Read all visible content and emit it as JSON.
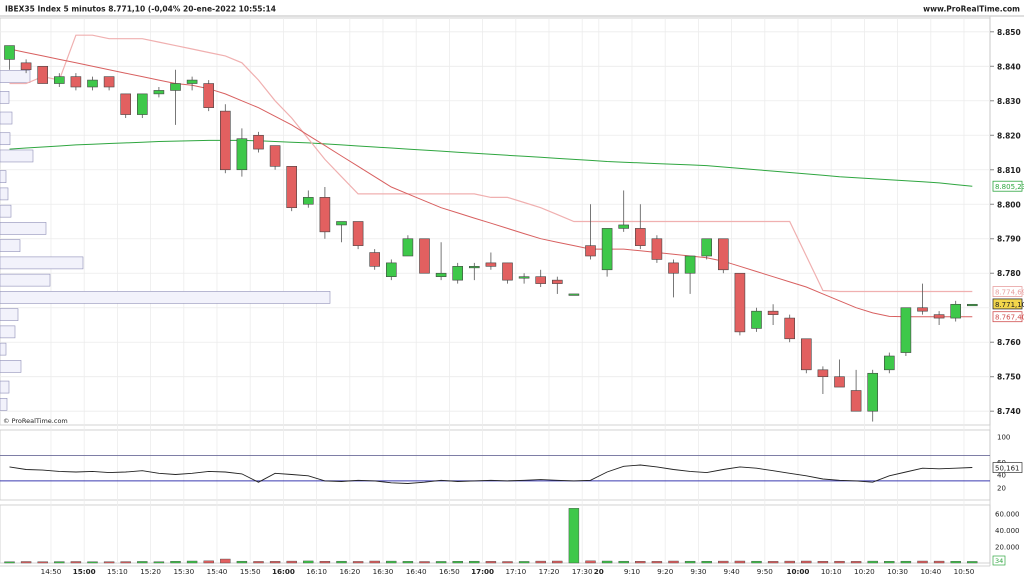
{
  "header": {
    "title": "IBEX35 Index 5 minutos 8.771,10 (-0,04% 20-ene-2022 10:55:14",
    "brand": "www.ProRealTime.com"
  },
  "watermark": "© ProRealTime.com",
  "chart_data": {
    "type": "candlestick",
    "time_labels": [
      {
        "label": "14:50",
        "bold": false,
        "at": 2.5
      },
      {
        "label": "15:00",
        "bold": true,
        "at": 4.5
      },
      {
        "label": "15:10",
        "bold": false,
        "at": 6.5
      },
      {
        "label": "15:20",
        "bold": false,
        "at": 8.5
      },
      {
        "label": "15:30",
        "bold": false,
        "at": 10.5
      },
      {
        "label": "15:40",
        "bold": false,
        "at": 12.5
      },
      {
        "label": "15:50",
        "bold": false,
        "at": 14.5
      },
      {
        "label": "16:00",
        "bold": true,
        "at": 16.5
      },
      {
        "label": "16:10",
        "bold": false,
        "at": 18.5
      },
      {
        "label": "16:20",
        "bold": false,
        "at": 20.5
      },
      {
        "label": "16:30",
        "bold": false,
        "at": 22.5
      },
      {
        "label": "16:40",
        "bold": false,
        "at": 24.5
      },
      {
        "label": "16:50",
        "bold": false,
        "at": 26.5
      },
      {
        "label": "17:00",
        "bold": true,
        "at": 28.5
      },
      {
        "label": "17:10",
        "bold": false,
        "at": 30.5
      },
      {
        "label": "17:20",
        "bold": false,
        "at": 32.5
      },
      {
        "label": "17:30",
        "bold": false,
        "at": 34.5
      },
      {
        "label": "20",
        "bold": true,
        "at": 35.5
      },
      {
        "label": "9:10",
        "bold": false,
        "at": 37.5
      },
      {
        "label": "9:20",
        "bold": false,
        "at": 39.5
      },
      {
        "label": "9:30",
        "bold": false,
        "at": 41.5
      },
      {
        "label": "9:40",
        "bold": false,
        "at": 43.5
      },
      {
        "label": "9:50",
        "bold": false,
        "at": 45.5
      },
      {
        "label": "10:00",
        "bold": true,
        "at": 47.5
      },
      {
        "label": "10:10",
        "bold": false,
        "at": 49.5
      },
      {
        "label": "10:20",
        "bold": false,
        "at": 51.5
      },
      {
        "label": "10:30",
        "bold": false,
        "at": 53.5
      },
      {
        "label": "10:40",
        "bold": false,
        "at": 55.5
      },
      {
        "label": "10:50",
        "bold": false,
        "at": 57.5
      }
    ],
    "candles": [
      {
        "o": 8842,
        "h": 8846,
        "l": 8839,
        "c": 8846
      },
      {
        "o": 8841,
        "h": 8842,
        "l": 8838,
        "c": 8839
      },
      {
        "o": 8840,
        "h": 8840,
        "l": 8835,
        "c": 8835
      },
      {
        "o": 8835,
        "h": 8838,
        "l": 8834,
        "c": 8837
      },
      {
        "o": 8837,
        "h": 8838,
        "l": 8833,
        "c": 8834
      },
      {
        "o": 8834,
        "h": 8837,
        "l": 8833,
        "c": 8836
      },
      {
        "o": 8837,
        "h": 8837,
        "l": 8833,
        "c": 8834
      },
      {
        "o": 8832,
        "h": 8832,
        "l": 8825,
        "c": 8826
      },
      {
        "o": 8826,
        "h": 8832,
        "l": 8825,
        "c": 8832
      },
      {
        "o": 8832,
        "h": 8834,
        "l": 8831,
        "c": 8833
      },
      {
        "o": 8833,
        "h": 8839,
        "l": 8823,
        "c": 8835
      },
      {
        "o": 8835,
        "h": 8837,
        "l": 8833,
        "c": 8836
      },
      {
        "o": 8835,
        "h": 8836,
        "l": 8827,
        "c": 8828
      },
      {
        "o": 8827,
        "h": 8829,
        "l": 8809,
        "c": 8810
      },
      {
        "o": 8810,
        "h": 8822,
        "l": 8808,
        "c": 8819
      },
      {
        "o": 8820,
        "h": 8821,
        "l": 8815,
        "c": 8816
      },
      {
        "o": 8817,
        "h": 8817,
        "l": 8810,
        "c": 8811
      },
      {
        "o": 8811,
        "h": 8811,
        "l": 8798,
        "c": 8799
      },
      {
        "o": 8800,
        "h": 8804,
        "l": 8799,
        "c": 8802
      },
      {
        "o": 8802,
        "h": 8805,
        "l": 8790,
        "c": 8792
      },
      {
        "o": 8794,
        "h": 8795,
        "l": 8789,
        "c": 8795
      },
      {
        "o": 8795,
        "h": 8795,
        "l": 8787,
        "c": 8788
      },
      {
        "o": 8786,
        "h": 8787,
        "l": 8781,
        "c": 8782
      },
      {
        "o": 8779,
        "h": 8784,
        "l": 8778,
        "c": 8783
      },
      {
        "o": 8785,
        "h": 8791,
        "l": 8785,
        "c": 8790
      },
      {
        "o": 8790,
        "h": 8790,
        "l": 8780,
        "c": 8780
      },
      {
        "o": 8779,
        "h": 8789,
        "l": 8778,
        "c": 8780
      },
      {
        "o": 8778,
        "h": 8783,
        "l": 8777,
        "c": 8782
      },
      {
        "o": 8782,
        "h": 8783,
        "l": 8778,
        "c": 8782
      },
      {
        "o": 8783,
        "h": 8786,
        "l": 8781,
        "c": 8782
      },
      {
        "o": 8783,
        "h": 8783,
        "l": 8777,
        "c": 8778
      },
      {
        "o": 8779,
        "h": 8780,
        "l": 8777,
        "c": 8779
      },
      {
        "o": 8779,
        "h": 8781,
        "l": 8776,
        "c": 8777
      },
      {
        "o": 8778,
        "h": 8779,
        "l": 8774,
        "c": 8777
      },
      {
        "o": 8774,
        "h": 8774,
        "l": 8774,
        "c": 8774
      },
      {
        "o": 8788,
        "h": 8800,
        "l": 8784,
        "c": 8785
      },
      {
        "o": 8781,
        "h": 8793,
        "l": 8779,
        "c": 8793
      },
      {
        "o": 8793,
        "h": 8804,
        "l": 8792,
        "c": 8794
      },
      {
        "o": 8793,
        "h": 8800,
        "l": 8787,
        "c": 8788
      },
      {
        "o": 8790,
        "h": 8791,
        "l": 8783,
        "c": 8784
      },
      {
        "o": 8783,
        "h": 8784,
        "l": 8773,
        "c": 8780
      },
      {
        "o": 8780,
        "h": 8785,
        "l": 8774,
        "c": 8785
      },
      {
        "o": 8785,
        "h": 8790,
        "l": 8784,
        "c": 8790
      },
      {
        "o": 8790,
        "h": 8790,
        "l": 8780,
        "c": 8781
      },
      {
        "o": 8780,
        "h": 8780,
        "l": 8762,
        "c": 8763
      },
      {
        "o": 8764,
        "h": 8770,
        "l": 8763,
        "c": 8769
      },
      {
        "o": 8769,
        "h": 8771,
        "l": 8765,
        "c": 8768
      },
      {
        "o": 8767,
        "h": 8768,
        "l": 8760,
        "c": 8761
      },
      {
        "o": 8761,
        "h": 8761,
        "l": 8751,
        "c": 8752
      },
      {
        "o": 8752,
        "h": 8753,
        "l": 8745,
        "c": 8750
      },
      {
        "o": 8750,
        "h": 8755,
        "l": 8747,
        "c": 8747
      },
      {
        "o": 8746,
        "h": 8752,
        "l": 8740,
        "c": 8740
      },
      {
        "o": 8740,
        "h": 8752,
        "l": 8737,
        "c": 8751
      },
      {
        "o": 8752,
        "h": 8757,
        "l": 8751,
        "c": 8756
      },
      {
        "o": 8757,
        "h": 8770,
        "l": 8756,
        "c": 8770
      },
      {
        "o": 8770,
        "h": 8777,
        "l": 8768,
        "c": 8769
      },
      {
        "o": 8768,
        "h": 8769,
        "l": 8765,
        "c": 8767
      },
      {
        "o": 8767,
        "h": 8772,
        "l": 8766,
        "c": 8771
      },
      {
        "o": 8771,
        "h": 8771,
        "l": 8771,
        "c": 8771
      }
    ],
    "ema_fast": [
      8845,
      8844,
      8843,
      8842,
      8841,
      8840,
      8839,
      8838,
      8837,
      8836,
      8835,
      8834.5,
      8833.5,
      8832,
      8830,
      8828,
      8825.5,
      8823,
      8820,
      8817,
      8814,
      8811,
      8808,
      8805,
      8803,
      8801,
      8799,
      8797.5,
      8796,
      8794.5,
      8793,
      8791.5,
      8790,
      8789,
      8788,
      8787,
      8787,
      8787,
      8786.5,
      8786,
      8785.5,
      8785,
      8784.5,
      8783.5,
      8782,
      8780.5,
      8779,
      8777.5,
      8776,
      8774,
      8772,
      8770,
      8768.5,
      8767.5,
      8767.4,
      8767.4,
      8767.4,
      8767.4,
      8767.4
    ],
    "upper_band": [
      8835,
      8835,
      8837,
      8836,
      8849,
      8849,
      8848,
      8848,
      8848,
      8847,
      8846,
      8845,
      8844,
      8843,
      8841,
      8836,
      8830,
      8825,
      8819,
      8813,
      8808,
      8803,
      8803,
      8803,
      8803,
      8803,
      8803,
      8803,
      8803,
      8802,
      8802,
      8800.5,
      8799,
      8797,
      8795,
      8795,
      8795,
      8795,
      8795,
      8795,
      8795,
      8795,
      8795,
      8795,
      8795,
      8795,
      8795,
      8795,
      8785,
      8775,
      8774.7,
      8774.7,
      8774.7,
      8774.7,
      8774.7,
      8774.7,
      8774.7,
      8774.7,
      8774.7
    ],
    "ma_slow": [
      8816,
      8816.3,
      8816.6,
      8816.9,
      8817.2,
      8817.4,
      8817.6,
      8817.8,
      8818,
      8818.2,
      8818.3,
      8818.4,
      8818.5,
      8818.5,
      8818.5,
      8818.4,
      8818.2,
      8818,
      8817.8,
      8817.5,
      8817.2,
      8816.9,
      8816.6,
      8816.3,
      8816,
      8815.7,
      8815.4,
      8815.1,
      8814.8,
      8814.5,
      8814.2,
      8813.9,
      8813.6,
      8813.3,
      8813,
      8812.7,
      8812.4,
      8812.2,
      8812,
      8811.8,
      8811.6,
      8811.4,
      8811.2,
      8810.8,
      8810.4,
      8810,
      8809.6,
      8809.2,
      8808.8,
      8808.4,
      8808,
      8807.7,
      8807.4,
      8807.1,
      8806.8,
      8806.5,
      8806.2,
      8805.7,
      8805.2
    ],
    "price_ticks": [
      "8.850",
      "8.840",
      "8.830",
      "8.820",
      "8.810",
      "8.800",
      "8.790",
      "8.780",
      "8.760",
      "8.750",
      "8.740"
    ],
    "price_tick_values": [
      8850,
      8840,
      8830,
      8820,
      8810,
      8800,
      8790,
      8780,
      8760,
      8750,
      8740
    ],
    "price_ylim": [
      8736,
      8854
    ],
    "markers": [
      {
        "label": "8.805,23",
        "value": 8805.23,
        "color": "#2fa640",
        "fill": "#ffffff"
      },
      {
        "label": "8.774,69",
        "value": 8774.69,
        "color": "#e8a0a0",
        "fill": "#ffffff"
      },
      {
        "label": "8.771,10",
        "value": 8771.1,
        "color": "#333333",
        "fill": "#f2d64b"
      },
      {
        "label": "8.767,40",
        "value": 8767.4,
        "color": "#d05050",
        "fill": "#ffffff"
      }
    ],
    "volume_profile_rows": [
      {
        "price": 8837,
        "w": 30
      },
      {
        "price": 8831,
        "w": 9
      },
      {
        "price": 8825,
        "w": 12
      },
      {
        "price": 8819,
        "w": 10
      },
      {
        "price": 8814,
        "w": 33
      },
      {
        "price": 8808,
        "w": 6
      },
      {
        "price": 8803,
        "w": 8
      },
      {
        "price": 8798,
        "w": 11
      },
      {
        "price": 8793,
        "w": 46
      },
      {
        "price": 8788,
        "w": 20
      },
      {
        "price": 8783,
        "w": 83
      },
      {
        "price": 8778,
        "w": 50
      },
      {
        "price": 8773,
        "w": 330
      },
      {
        "price": 8768,
        "w": 18
      },
      {
        "price": 8763,
        "w": 15
      },
      {
        "price": 8758,
        "w": 6
      },
      {
        "price": 8753,
        "w": 21
      },
      {
        "price": 8747,
        "w": 9
      },
      {
        "price": 8742,
        "w": 7
      }
    ],
    "oscillator": {
      "ticks": [
        "100",
        "60",
        "40",
        "20"
      ],
      "tick_values": [
        100,
        60,
        40,
        20
      ],
      "upper_level": 70,
      "lower_level": 30,
      "values": [
        52,
        48,
        47,
        45,
        44,
        45,
        43,
        44,
        46,
        42,
        40,
        42,
        45,
        44,
        41,
        28,
        42,
        40,
        38,
        30,
        29,
        31,
        30,
        27,
        26,
        28,
        31,
        29,
        30,
        31,
        30,
        31,
        32,
        31,
        30,
        31,
        44,
        53,
        55,
        52,
        48,
        45,
        43,
        48,
        52,
        50,
        46,
        42,
        38,
        33,
        31,
        30,
        28,
        38,
        44,
        50,
        49,
        50,
        51
      ],
      "current_label": "50,161",
      "lower_label": "34"
    },
    "volume": {
      "ticks": [
        "60.000",
        "40.000",
        "20.000"
      ],
      "tick_values": [
        60000,
        40000,
        20000
      ],
      "ymax": 70000,
      "values": [
        1500,
        1800,
        1600,
        1700,
        1800,
        1500,
        1600,
        1700,
        1900,
        1600,
        2100,
        2400,
        2600,
        4800,
        2200,
        1900,
        2000,
        2300,
        2500,
        2100,
        2200,
        1900,
        2400,
        2300,
        2000,
        1800,
        1900,
        2100,
        2200,
        2000,
        1800,
        1900,
        2300,
        2400,
        66000,
        2600,
        2400,
        2200,
        2100,
        2000,
        2400,
        2200,
        2100,
        2300,
        2400,
        2200,
        2000,
        2300,
        2400,
        2100,
        2200,
        2000,
        2300,
        2100,
        2200,
        2400,
        2300,
        2100,
        1900
      ]
    }
  }
}
